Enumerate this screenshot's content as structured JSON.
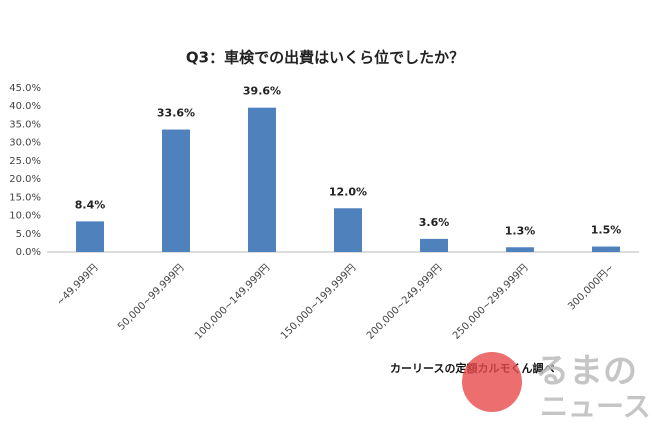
{
  "chart_data": {
    "type": "bar",
    "title": "Q3：車検での出費はいくら位でしたか？",
    "categories": [
      "~49,999円",
      "50,000~99,999円",
      "100,000~149,999円",
      "150,000~199,999円",
      "200,000~249,999円",
      "250,000~299,999円",
      "300,000円~"
    ],
    "values": [
      8.4,
      33.6,
      39.6,
      12.0,
      3.6,
      1.3,
      1.5
    ],
    "value_labels": [
      "8.4%",
      "33.6%",
      "39.6%",
      "12.0%",
      "3.6%",
      "1.3%",
      "1.5%"
    ],
    "color": "#4f81bd",
    "ylim": [
      0,
      45
    ],
    "yticks": [
      {
        "value": 0,
        "label": "0.0%"
      },
      {
        "value": 5,
        "label": "5.0%"
      },
      {
        "value": 10,
        "label": "10.0%"
      },
      {
        "value": 15,
        "label": "15.0%"
      },
      {
        "value": 20,
        "label": "20.0%"
      },
      {
        "value": 25,
        "label": "25.0%"
      },
      {
        "value": 30,
        "label": "30.0%"
      },
      {
        "value": 35,
        "label": "35.0%"
      },
      {
        "value": 40,
        "label": "40.0%"
      },
      {
        "value": 45,
        "label": "45.0%"
      }
    ],
    "grid": false,
    "source": "カーリースの定額カルモくん調べ",
    "logo": [
      "るまの",
      "ニュース"
    ]
  }
}
